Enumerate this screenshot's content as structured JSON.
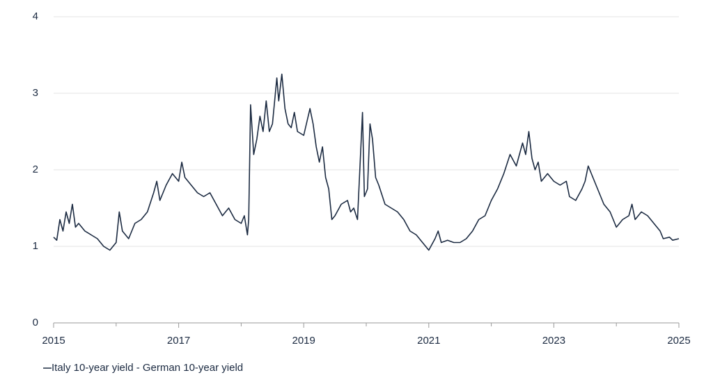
{
  "chart_data": {
    "type": "line",
    "series": [
      {
        "name": "Italy 10-year yield - German 10-year yield",
        "color": "#1b2a41",
        "x": [
          2015,
          2015.05,
          2015.1,
          2015.15,
          2015.2,
          2015.25,
          2015.3,
          2015.35,
          2015.4,
          2015.5,
          2015.6,
          2015.7,
          2015.8,
          2015.9,
          2016,
          2016.05,
          2016.1,
          2016.2,
          2016.3,
          2016.4,
          2016.5,
          2016.6,
          2016.65,
          2016.7,
          2016.8,
          2016.9,
          2017,
          2017.05,
          2017.1,
          2017.2,
          2017.3,
          2017.4,
          2017.5,
          2017.6,
          2017.7,
          2017.8,
          2017.9,
          2018,
          2018.05,
          2018.1,
          2018.12,
          2018.15,
          2018.2,
          2018.25,
          2018.3,
          2018.35,
          2018.4,
          2018.45,
          2018.5,
          2018.57,
          2018.6,
          2018.65,
          2018.7,
          2018.75,
          2018.8,
          2018.85,
          2018.9,
          2019,
          2019.1,
          2019.15,
          2019.2,
          2019.25,
          2019.3,
          2019.35,
          2019.4,
          2019.45,
          2019.5,
          2019.6,
          2019.7,
          2019.75,
          2019.8,
          2019.86,
          2019.94,
          2019.97,
          2020.02,
          2020.06,
          2020.1,
          2020.15,
          2020.2,
          2020.3,
          2020.4,
          2020.5,
          2020.6,
          2020.7,
          2020.8,
          2020.9,
          2021,
          2021.1,
          2021.15,
          2021.2,
          2021.3,
          2021.4,
          2021.5,
          2021.6,
          2021.7,
          2021.8,
          2021.9,
          2022,
          2022.1,
          2022.2,
          2022.3,
          2022.4,
          2022.5,
          2022.55,
          2022.6,
          2022.65,
          2022.7,
          2022.75,
          2022.8,
          2022.9,
          2023,
          2023.1,
          2023.2,
          2023.25,
          2023.35,
          2023.45,
          2023.5,
          2023.55,
          2023.6,
          2023.7,
          2023.8,
          2023.9,
          2024,
          2024.1,
          2024.2,
          2024.25,
          2024.3,
          2024.4,
          2024.5,
          2024.6,
          2024.7,
          2024.75,
          2024.85,
          2024.9,
          2025
        ],
        "values": [
          1.12,
          1.08,
          1.35,
          1.2,
          1.45,
          1.3,
          1.55,
          1.25,
          1.3,
          1.2,
          1.15,
          1.1,
          1.0,
          0.95,
          1.05,
          1.45,
          1.2,
          1.1,
          1.3,
          1.35,
          1.45,
          1.7,
          1.85,
          1.6,
          1.8,
          1.95,
          1.85,
          2.1,
          1.9,
          1.8,
          1.7,
          1.65,
          1.7,
          1.55,
          1.4,
          1.5,
          1.35,
          1.3,
          1.4,
          1.15,
          1.35,
          2.85,
          2.2,
          2.4,
          2.7,
          2.5,
          2.9,
          2.5,
          2.6,
          3.2,
          2.9,
          3.25,
          2.8,
          2.6,
          2.55,
          2.75,
          2.5,
          2.45,
          2.8,
          2.6,
          2.3,
          2.1,
          2.3,
          1.9,
          1.75,
          1.35,
          1.4,
          1.55,
          1.6,
          1.45,
          1.5,
          1.35,
          2.75,
          1.65,
          1.75,
          2.6,
          2.4,
          1.9,
          1.8,
          1.55,
          1.5,
          1.45,
          1.35,
          1.2,
          1.15,
          1.05,
          0.95,
          1.1,
          1.2,
          1.05,
          1.08,
          1.05,
          1.05,
          1.1,
          1.2,
          1.35,
          1.4,
          1.6,
          1.75,
          1.95,
          2.2,
          2.05,
          2.35,
          2.2,
          2.5,
          2.15,
          2.0,
          2.1,
          1.85,
          1.95,
          1.85,
          1.8,
          1.85,
          1.65,
          1.6,
          1.75,
          1.85,
          2.05,
          1.95,
          1.75,
          1.55,
          1.45,
          1.25,
          1.35,
          1.4,
          1.55,
          1.35,
          1.45,
          1.4,
          1.3,
          1.2,
          1.1,
          1.12,
          1.08,
          1.1
        ]
      }
    ],
    "xlim": [
      2015,
      2025
    ],
    "xticks": [
      2015,
      2017,
      2019,
      2021,
      2023,
      2025
    ],
    "xminorticks": [
      2016,
      2018,
      2020,
      2022,
      2024
    ],
    "ylim": [
      0,
      4
    ],
    "yticks": [
      0,
      1,
      2,
      3,
      4
    ],
    "grid": true
  }
}
